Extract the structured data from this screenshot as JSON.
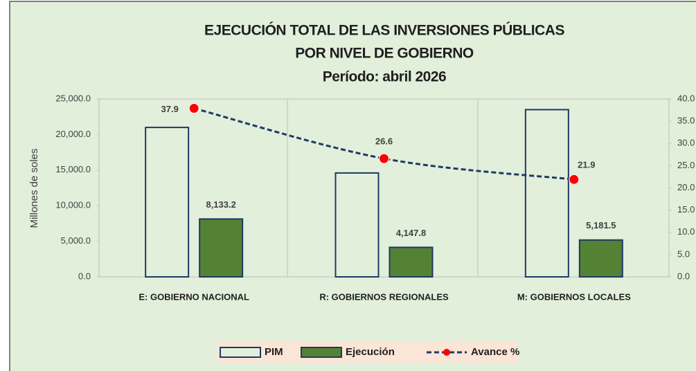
{
  "chart_data": {
    "type": "bar",
    "title": "EJECUCIÓN TOTAL DE LAS INVERSIONES PÚBLICAS",
    "subtitle": "POR NIVEL DE  GOBIERNO",
    "period": "Período:  abril 2026",
    "y_label": "Millones de soles",
    "categories": [
      "E: GOBIERNO NACIONAL",
      "R: GOBIERNOS REGIONALES",
      "M: GOBIERNOS LOCALES"
    ],
    "series": [
      {
        "name": "PIM",
        "type": "bar",
        "color": "#e2efda",
        "values": [
          21000,
          14600,
          23500
        ]
      },
      {
        "name": "Ejecución",
        "type": "bar",
        "color": "#548235",
        "values": [
          8133.2,
          4147.8,
          5181.5
        ],
        "value_labels": [
          "8,133.2",
          "4,147.8",
          "5,181.5"
        ]
      },
      {
        "name": "Avance %",
        "type": "line",
        "axis": "y2",
        "color": "#1f3864",
        "marker_color": "#ff0000",
        "values": [
          37.9,
          26.6,
          21.9
        ]
      }
    ],
    "ylim": [
      0,
      25000
    ],
    "yticks": [
      {
        "value": 0,
        "label": "0.0"
      },
      {
        "value": 5000,
        "label": "5,000.0"
      },
      {
        "value": 10000,
        "label": "10,000.0"
      },
      {
        "value": 15000,
        "label": "15,000.0"
      },
      {
        "value": 20000,
        "label": "20,000.0"
      },
      {
        "value": 25000,
        "label": "25,000.0"
      }
    ],
    "y2lim": [
      0,
      40
    ],
    "y2ticks": [
      {
        "value": 0,
        "label": "0.0"
      },
      {
        "value": 5,
        "label": "5.0"
      },
      {
        "value": 10,
        "label": "10.0"
      },
      {
        "value": 15,
        "label": "15.0"
      },
      {
        "value": 20,
        "label": "20.0"
      },
      {
        "value": 25,
        "label": "25.0"
      },
      {
        "value": 30,
        "label": "30.0"
      },
      {
        "value": 35,
        "label": "35.0"
      },
      {
        "value": 40,
        "label": "40.0"
      }
    ],
    "legend": "bottom"
  }
}
